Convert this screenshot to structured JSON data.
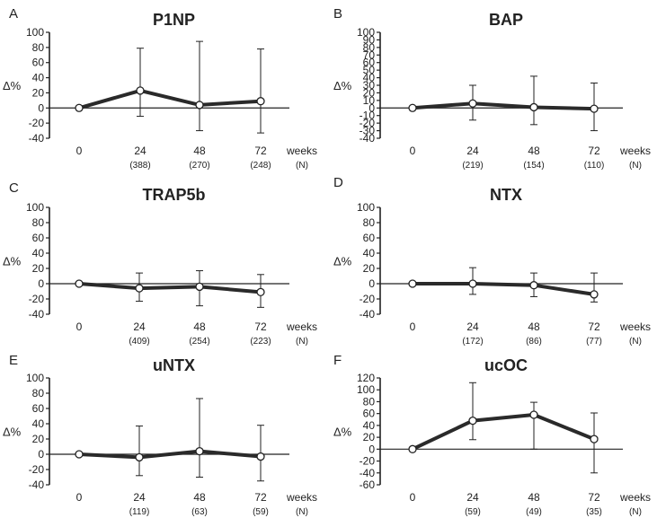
{
  "chart_data": [
    {
      "type": "line",
      "panel": "A",
      "title": "P1NP",
      "ylabel": "Δ%",
      "xlabel": "weeks",
      "n_label": "(N)",
      "ylim": [
        -40,
        100
      ],
      "yticks": [
        -40,
        -20,
        0,
        20,
        40,
        60,
        80,
        100
      ],
      "x": [
        0,
        24,
        48,
        72
      ],
      "x_labels": [
        "0",
        "24",
        "48",
        "72"
      ],
      "n": [
        "",
        "(388)",
        "(270)",
        "(248)"
      ],
      "mean": [
        0,
        23,
        4,
        9
      ],
      "err_upper": [
        0,
        79,
        88,
        78
      ],
      "err_lower": [
        0,
        -11,
        -30,
        -33
      ]
    },
    {
      "type": "line",
      "panel": "B",
      "title": "BAP",
      "ylabel": "Δ%",
      "xlabel": "weeks",
      "n_label": "(N)",
      "ylim": [
        -40,
        100
      ],
      "yticks": [
        -40,
        -30,
        -20,
        -10,
        0,
        10,
        20,
        30,
        40,
        50,
        60,
        70,
        80,
        90,
        100
      ],
      "ytick_labels": [
        "-40",
        "-30",
        "-20",
        "-10",
        "0",
        "10",
        "20",
        "30",
        "40",
        "50",
        "60",
        "70",
        "80",
        "90",
        "100"
      ],
      "x": [
        0,
        24,
        48,
        72
      ],
      "x_labels": [
        "0",
        "24",
        "48",
        "72"
      ],
      "n": [
        "",
        "(219)",
        "(154)",
        "(110)"
      ],
      "mean": [
        0,
        6,
        1,
        -1
      ],
      "err_upper": [
        0,
        30,
        42,
        33
      ],
      "err_lower": [
        0,
        -16,
        -22,
        -30
      ]
    },
    {
      "type": "line",
      "panel": "C",
      "title": "TRAP5b",
      "ylabel": "Δ%",
      "xlabel": "weeks",
      "n_label": "(N)",
      "ylim": [
        -40,
        100
      ],
      "yticks": [
        -40,
        -20,
        0,
        20,
        40,
        60,
        80,
        100
      ],
      "x": [
        0,
        24,
        48,
        72
      ],
      "x_labels": [
        "0",
        "24",
        "48",
        "72"
      ],
      "n": [
        "",
        "(409)",
        "(254)",
        "(223)"
      ],
      "mean": [
        0,
        -6,
        -4,
        -11
      ],
      "err_upper": [
        0,
        14,
        17,
        12
      ],
      "err_lower": [
        0,
        -23,
        -29,
        -31
      ]
    },
    {
      "type": "line",
      "panel": "D",
      "title": "NTX",
      "ylabel": "Δ%",
      "xlabel": "weeks",
      "n_label": "(N)",
      "ylim": [
        -40,
        100
      ],
      "yticks": [
        -40,
        -20,
        0,
        20,
        40,
        60,
        80,
        100
      ],
      "x": [
        0,
        24,
        48,
        72
      ],
      "x_labels": [
        "0",
        "24",
        "48",
        "72"
      ],
      "n": [
        "",
        "(172)",
        "(86)",
        "(77)"
      ],
      "mean": [
        0,
        0,
        -2,
        -14
      ],
      "err_upper": [
        0,
        21,
        14,
        14
      ],
      "err_lower": [
        0,
        -14,
        -17,
        -24
      ]
    },
    {
      "type": "line",
      "panel": "E",
      "title": "uNTX",
      "ylabel": "Δ%",
      "xlabel": "weeks",
      "n_label": "(N)",
      "ylim": [
        -40,
        100
      ],
      "yticks": [
        -40,
        -20,
        0,
        20,
        40,
        60,
        80,
        100
      ],
      "x": [
        0,
        24,
        48,
        72
      ],
      "x_labels": [
        "0",
        "24",
        "48",
        "72"
      ],
      "n": [
        "",
        "(119)",
        "(63)",
        "(59)"
      ],
      "mean": [
        0,
        -4,
        4,
        -3
      ],
      "err_upper": [
        0,
        37,
        73,
        38
      ],
      "err_lower": [
        0,
        -28,
        -30,
        -35
      ]
    },
    {
      "type": "line",
      "panel": "F",
      "title": "ucOC",
      "ylabel": "Δ%",
      "xlabel": "weeks",
      "n_label": "(N)",
      "ylim": [
        -60,
        120
      ],
      "yticks": [
        -60,
        -40,
        -20,
        0,
        20,
        40,
        60,
        80,
        100,
        120
      ],
      "x": [
        0,
        24,
        48,
        72
      ],
      "x_labels": [
        "0",
        "24",
        "48",
        "72"
      ],
      "n": [
        "",
        "(59)",
        "(49)",
        "(35)"
      ],
      "mean": [
        0,
        48,
        58,
        17
      ],
      "err_upper": [
        0,
        112,
        79,
        61
      ],
      "err_lower": [
        0,
        16,
        0,
        -40
      ]
    }
  ]
}
